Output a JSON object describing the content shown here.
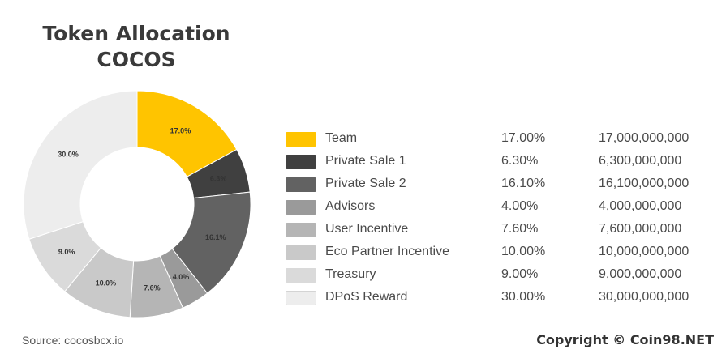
{
  "title_line1": "Token Allocation",
  "title_line2": "COCOS",
  "chart_data": {
    "type": "pie",
    "title": "Token Allocation COCOS",
    "slices": [
      {
        "label": "Team",
        "value": 17.0,
        "slice_label": "17.0%",
        "percent": "17.00%",
        "amount": "17,000,000,000",
        "color": "#FFC400"
      },
      {
        "label": "Private Sale 1",
        "value": 6.3,
        "slice_label": "6.3%",
        "percent": "6.30%",
        "amount": "6,300,000,000",
        "color": "#404040"
      },
      {
        "label": "Private Sale 2",
        "value": 16.1,
        "slice_label": "16.1%",
        "percent": "16.10%",
        "amount": "16,100,000,000",
        "color": "#626262"
      },
      {
        "label": "Advisors",
        "value": 4.0,
        "slice_label": "4.0%",
        "percent": "4.00%",
        "amount": "4,000,000,000",
        "color": "#9A9A9A"
      },
      {
        "label": "User Incentive",
        "value": 7.6,
        "slice_label": "7.6%",
        "percent": "7.60%",
        "amount": "7,600,000,000",
        "color": "#B5B5B5"
      },
      {
        "label": "Eco Partner Incentive",
        "value": 10.0,
        "slice_label": "10.0%",
        "percent": "10.00%",
        "amount": "10,000,000,000",
        "color": "#C9C9C9"
      },
      {
        "label": "Treasury",
        "value": 9.0,
        "slice_label": "9.0%",
        "percent": "9.00%",
        "amount": "9,000,000,000",
        "color": "#DADADA"
      },
      {
        "label": "DPoS Reward",
        "value": 30.0,
        "slice_label": "30.0%",
        "percent": "30.00%",
        "amount": "30,000,000,000",
        "color": "#EDEDED"
      }
    ],
    "legend": "right"
  },
  "source": "Source: cocosbcx.io",
  "copyright": "Copyright © Coin98.NET"
}
